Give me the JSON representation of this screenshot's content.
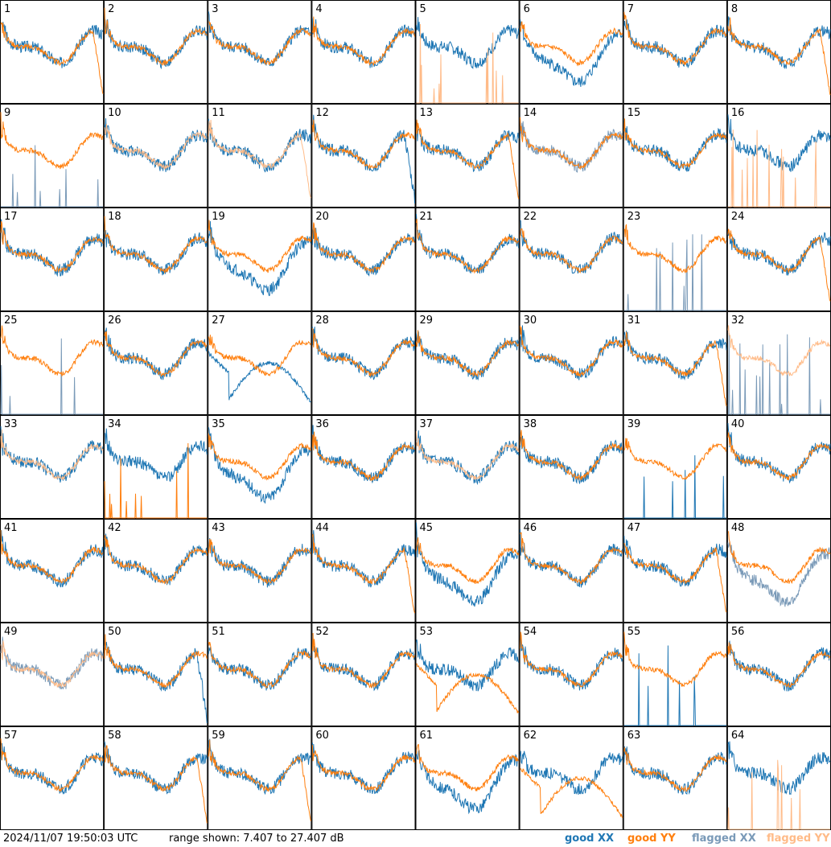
{
  "footer": {
    "timestamp": "2024/11/07 19:50:03 UTC",
    "range_text": "range shown: 7.407 to 27.407 dB",
    "legend": [
      {
        "label": "good XX",
        "color": "#1f77b4"
      },
      {
        "label": "good YY",
        "color": "#ff7f0e"
      },
      {
        "label": "flagged XX",
        "color": "#7a9ab8"
      },
      {
        "label": "flagged YY",
        "color": "#ffbb88"
      }
    ]
  },
  "chart_data": {
    "type": "line",
    "layout": "8x8 small multiples",
    "ylim": [
      7.407,
      27.407
    ],
    "y_unit": "dB",
    "panels": [
      {
        "id": "1",
        "xx": "good",
        "yy": "good",
        "yy_shape": "drop_end"
      },
      {
        "id": "2",
        "xx": "good",
        "yy": "good"
      },
      {
        "id": "3",
        "xx": "good",
        "yy": "good"
      },
      {
        "id": "4",
        "xx": "good",
        "yy": "good"
      },
      {
        "id": "5",
        "xx": "good",
        "yy": "flagged",
        "yy_shape": "spikes"
      },
      {
        "id": "6",
        "xx": "good",
        "yy": "good",
        "xx_shape": "deep"
      },
      {
        "id": "7",
        "xx": "good",
        "yy": "good"
      },
      {
        "id": "8",
        "xx": "good",
        "yy": "good",
        "yy_shape": "drop_end"
      },
      {
        "id": "9",
        "xx": "flagged",
        "yy": "good",
        "xx_shape": "spikes"
      },
      {
        "id": "10",
        "xx": "good",
        "yy": "flagged"
      },
      {
        "id": "11",
        "xx": "good",
        "yy": "flagged",
        "yy_shape": "drop_end"
      },
      {
        "id": "12",
        "xx": "good",
        "yy": "good",
        "xx_shape": "drop_end"
      },
      {
        "id": "13",
        "xx": "good",
        "yy": "good",
        "yy_shape": "drop_end"
      },
      {
        "id": "14",
        "xx": "flagged",
        "yy": "good"
      },
      {
        "id": "15",
        "xx": "good",
        "yy": "good"
      },
      {
        "id": "16",
        "xx": "good",
        "yy": "flagged",
        "yy_shape": "spikes"
      },
      {
        "id": "17",
        "xx": "good",
        "yy": "good"
      },
      {
        "id": "18",
        "xx": "good",
        "yy": "good"
      },
      {
        "id": "19",
        "xx": "good",
        "yy": "good",
        "xx_shape": "deep"
      },
      {
        "id": "20",
        "xx": "good",
        "yy": "good"
      },
      {
        "id": "21",
        "xx": "good",
        "yy": "good"
      },
      {
        "id": "22",
        "xx": "good",
        "yy": "good"
      },
      {
        "id": "23",
        "xx": "flagged",
        "yy": "good",
        "xx_shape": "spikes"
      },
      {
        "id": "24",
        "xx": "good",
        "yy": "good",
        "yy_shape": "drop_end"
      },
      {
        "id": "25",
        "xx": "flagged",
        "yy": "good",
        "xx_shape": "spikes"
      },
      {
        "id": "26",
        "xx": "good",
        "yy": "good"
      },
      {
        "id": "27",
        "xx": "good",
        "yy": "good",
        "xx_shape": "dip"
      },
      {
        "id": "28",
        "xx": "good",
        "yy": "good"
      },
      {
        "id": "29",
        "xx": "good",
        "yy": "good"
      },
      {
        "id": "30",
        "xx": "good",
        "yy": "good"
      },
      {
        "id": "31",
        "xx": "good",
        "yy": "good",
        "yy_shape": "drop_end"
      },
      {
        "id": "32",
        "xx": "flagged",
        "yy": "flagged",
        "xx_shape": "spikes"
      },
      {
        "id": "33",
        "xx": "good",
        "yy": "flagged"
      },
      {
        "id": "34",
        "xx": "good",
        "yy": "good",
        "yy_shape": "spikes"
      },
      {
        "id": "35",
        "xx": "good",
        "yy": "good",
        "xx_shape": "deep"
      },
      {
        "id": "36",
        "xx": "good",
        "yy": "good"
      },
      {
        "id": "37",
        "xx": "good",
        "yy": "flagged"
      },
      {
        "id": "38",
        "xx": "good",
        "yy": "good"
      },
      {
        "id": "39",
        "xx": "good",
        "yy": "good",
        "xx_shape": "spikes"
      },
      {
        "id": "40",
        "xx": "good",
        "yy": "good"
      },
      {
        "id": "41",
        "xx": "good",
        "yy": "good"
      },
      {
        "id": "42",
        "xx": "good",
        "yy": "good"
      },
      {
        "id": "43",
        "xx": "good",
        "yy": "good"
      },
      {
        "id": "44",
        "xx": "good",
        "yy": "good",
        "yy_shape": "drop_end"
      },
      {
        "id": "45",
        "xx": "good",
        "yy": "good",
        "xx_shape": "deep"
      },
      {
        "id": "46",
        "xx": "good",
        "yy": "good"
      },
      {
        "id": "47",
        "xx": "good",
        "yy": "good",
        "yy_shape": "drop_end"
      },
      {
        "id": "48",
        "xx": "flagged",
        "yy": "good",
        "xx_shape": "deep"
      },
      {
        "id": "49",
        "xx": "flagged",
        "yy": "flagged"
      },
      {
        "id": "50",
        "xx": "good",
        "yy": "good",
        "xx_shape": "drop_end"
      },
      {
        "id": "51",
        "xx": "good",
        "yy": "good"
      },
      {
        "id": "52",
        "xx": "good",
        "yy": "good"
      },
      {
        "id": "53",
        "xx": "good",
        "yy": "good",
        "yy_shape": "dip"
      },
      {
        "id": "54",
        "xx": "good",
        "yy": "good"
      },
      {
        "id": "55",
        "xx": "good",
        "yy": "good",
        "xx_shape": "spikes"
      },
      {
        "id": "56",
        "xx": "good",
        "yy": "good"
      },
      {
        "id": "57",
        "xx": "good",
        "yy": "good"
      },
      {
        "id": "58",
        "xx": "good",
        "yy": "good",
        "yy_shape": "drop_end"
      },
      {
        "id": "59",
        "xx": "good",
        "yy": "good",
        "yy_shape": "drop_end"
      },
      {
        "id": "60",
        "xx": "good",
        "yy": "good"
      },
      {
        "id": "61",
        "xx": "good",
        "yy": "good",
        "xx_shape": "deep"
      },
      {
        "id": "62",
        "xx": "good",
        "yy": "good",
        "yy_shape": "dip"
      },
      {
        "id": "63",
        "xx": "good",
        "yy": "good"
      },
      {
        "id": "64",
        "xx": "good",
        "yy": "flagged",
        "yy_shape": "spikes"
      }
    ]
  }
}
